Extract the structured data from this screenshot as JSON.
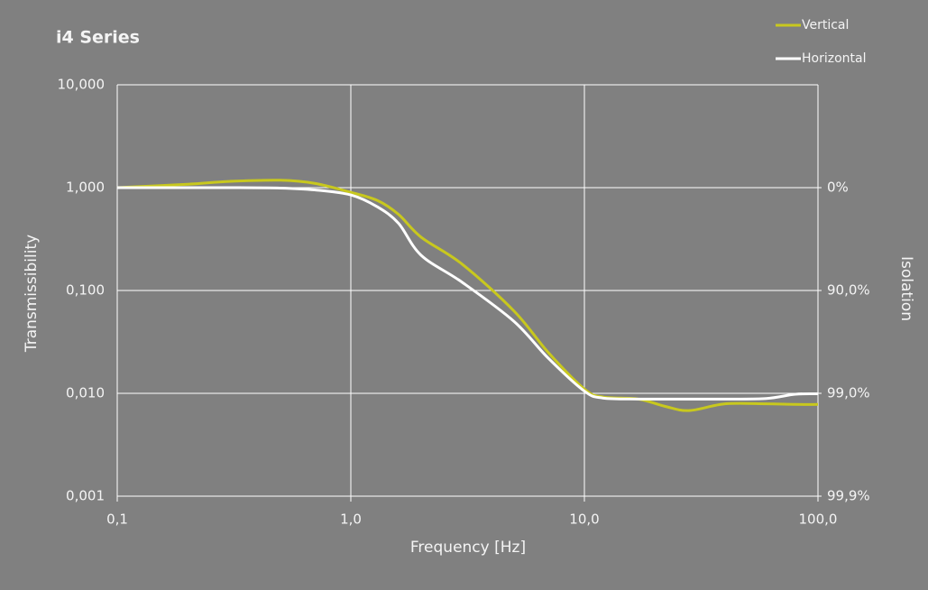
{
  "chart_data": {
    "type": "line",
    "title": "i4 Series",
    "x_label": "Frequency [Hz]",
    "y_label": "Transmissibility",
    "y2_label": "Isolation",
    "x": [
      0.1,
      0.2,
      0.3,
      0.5,
      0.7,
      1,
      1.3,
      1.6,
      2,
      3,
      5,
      7,
      10,
      12,
      17,
      22,
      28,
      40,
      60,
      80,
      100
    ],
    "series": [
      {
        "name": "Vertical",
        "color": "#c8c81e",
        "values": [
          1.0,
          1.08,
          1.15,
          1.18,
          1.1,
          0.9,
          0.75,
          0.55,
          0.33,
          0.18,
          0.063,
          0.025,
          0.011,
          0.0092,
          0.0088,
          0.0075,
          0.0068,
          0.0079,
          0.0079,
          0.0078,
          0.0078
        ]
      },
      {
        "name": "Horizontal",
        "color": "#ffffff",
        "values": [
          1.0,
          1.0,
          1.0,
          0.99,
          0.95,
          0.85,
          0.65,
          0.45,
          0.22,
          0.12,
          0.05,
          0.022,
          0.0105,
          0.009,
          0.0088,
          0.0088,
          0.0088,
          0.0088,
          0.0089,
          0.0098,
          0.0099
        ]
      }
    ],
    "xscale": "log",
    "yscale": "log",
    "xlim": [
      0.1,
      100
    ],
    "xticks": [
      {
        "value": 0.1,
        "label": "0,1"
      },
      {
        "value": 1,
        "label": "1,0"
      },
      {
        "value": 10,
        "label": "10,0"
      },
      {
        "value": 100,
        "label": "100,0"
      }
    ],
    "ylim": [
      0.001,
      10
    ],
    "yticks": [
      {
        "value": 0.001,
        "label": "0,001"
      },
      {
        "value": 0.01,
        "label": "0,010"
      },
      {
        "value": 0.1,
        "label": "0,100"
      },
      {
        "value": 1,
        "label": "1,000"
      },
      {
        "value": 10,
        "label": "10,000"
      }
    ],
    "y2lim": [
      0.001,
      10
    ],
    "y2ticks": [
      {
        "value": 0.001,
        "label": "99,9%"
      },
      {
        "value": 0.01,
        "label": "99,0%"
      },
      {
        "value": 0.1,
        "label": "90,0%"
      },
      {
        "value": 1,
        "label": "0%"
      }
    ],
    "grid": true,
    "legend": "top-right"
  }
}
